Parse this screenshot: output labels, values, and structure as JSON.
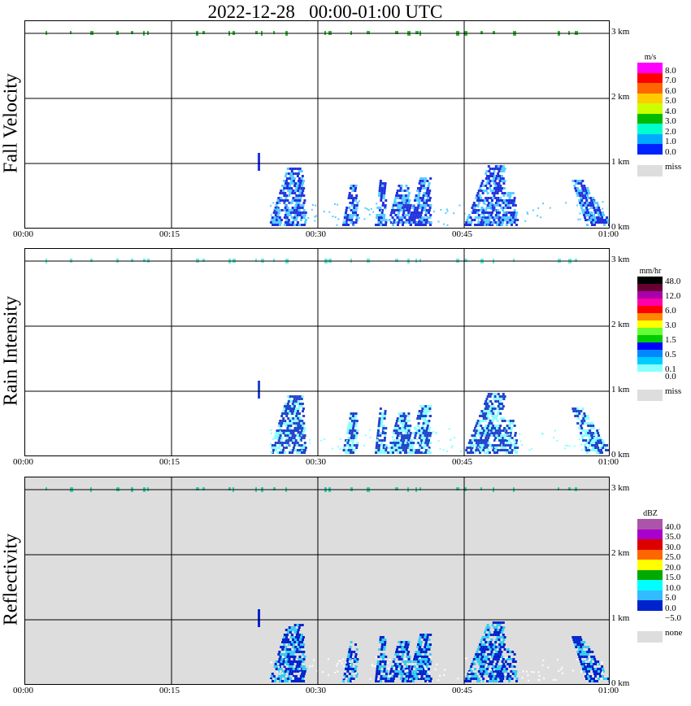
{
  "chart_data": {
    "title": "2022-12-28   00:00-01:00 UTC",
    "x_ticks": [
      "00:00",
      "00:15",
      "00:30",
      "00:45",
      "01:00"
    ],
    "y_ticks": [
      "0 km",
      "1 km",
      "2 km",
      "3 km"
    ],
    "panels": [
      {
        "type": "heatmap",
        "name": "Fall Velocity",
        "unit": "m/s",
        "background": "#ffffff",
        "colorbar": [
          {
            "label": "8.0",
            "color": "#ff00ff"
          },
          {
            "label": "7.0",
            "color": "#ff0000"
          },
          {
            "label": "6.0",
            "color": "#ff6600"
          },
          {
            "label": "5.0",
            "color": "#ffcc00"
          },
          {
            "label": "4.0",
            "color": "#ccff00"
          },
          {
            "label": "3.0",
            "color": "#00bb00"
          },
          {
            "label": "2.0",
            "color": "#00ffcc"
          },
          {
            "label": "1.0",
            "color": "#00aaff"
          },
          {
            "label": "0.0",
            "color": "#0022ff"
          }
        ],
        "extra_label": "miss",
        "extra_color": "#dddddd",
        "mark_color": "#2233dd",
        "mark_light": "#55ccff",
        "top_color": "#33bb33"
      },
      {
        "type": "heatmap",
        "name": "Rain Intensity",
        "unit": "mm/hr",
        "background": "#ffffff",
        "colorbar": [
          {
            "label": "48.0",
            "color": "#000000"
          },
          {
            "label": "",
            "color": "#660033"
          },
          {
            "label": "12.0",
            "color": "#aa00aa"
          },
          {
            "label": "",
            "color": "#ff00aa"
          },
          {
            "label": "6.0",
            "color": "#ff0000"
          },
          {
            "label": "",
            "color": "#ff8800"
          },
          {
            "label": "3.0",
            "color": "#ffff00"
          },
          {
            "label": "",
            "color": "#66ff33"
          },
          {
            "label": "1.5",
            "color": "#00cc00"
          },
          {
            "label": "",
            "color": "#0000ff"
          },
          {
            "label": "0.5",
            "color": "#0088ff"
          },
          {
            "label": "",
            "color": "#00ccff"
          },
          {
            "label": "0.1",
            "color": "#88ffff"
          },
          {
            "label": "0.0",
            "color": "#ffffff"
          }
        ],
        "extra_label": "miss",
        "extra_color": "#dddddd",
        "mark_color": "#2244cc",
        "mark_light": "#88ffff",
        "top_color": "#66eedd"
      },
      {
        "type": "heatmap",
        "name": "Reflectivity",
        "unit": "dBZ",
        "background": "#dddddd",
        "colorbar": [
          {
            "label": "40.0",
            "color": "#aa55aa"
          },
          {
            "label": "35.0",
            "color": "#aa00cc"
          },
          {
            "label": "30.0",
            "color": "#dd0000"
          },
          {
            "label": "25.0",
            "color": "#ff6600"
          },
          {
            "label": "20.0",
            "color": "#ffff00"
          },
          {
            "label": "15.0",
            "color": "#00aa00"
          },
          {
            "label": "10.0",
            "color": "#00ffff"
          },
          {
            "label": "5.0",
            "color": "#33bbff"
          },
          {
            "label": "0.0",
            "color": "#0022cc"
          },
          {
            "label": "−5.0",
            "color": "#ffffff"
          }
        ],
        "extra_label": "none",
        "extra_color": "#dddddd",
        "mark_color": "#0022cc",
        "mark_light": "#33ccee",
        "top_color": "#33ccaa"
      }
    ]
  }
}
